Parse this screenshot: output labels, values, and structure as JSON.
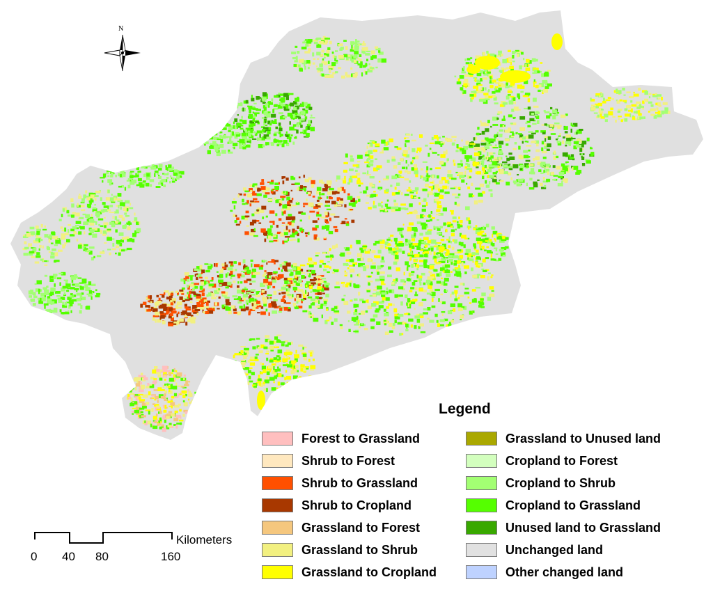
{
  "map": {
    "north_label": "N",
    "region_base_color": "#e0e0e0"
  },
  "legend": {
    "title": "Legend",
    "items": [
      {
        "label": "Forest to Grassland",
        "color": "#ffbfbf"
      },
      {
        "label": "Shrub to Forest",
        "color": "#ffe8bf"
      },
      {
        "label": "Shrub to Grassland",
        "color": "#ff5000"
      },
      {
        "label": "Shrub to Cropland",
        "color": "#a83800"
      },
      {
        "label": "Grassland to Forest",
        "color": "#f5c77e"
      },
      {
        "label": "Grassland to Shrub",
        "color": "#f2f080"
      },
      {
        "label": "Grassland to Cropland",
        "color": "#ffff00"
      },
      {
        "label": "Grassland to Unused land",
        "color": "#aaa800"
      },
      {
        "label": "Cropland to Forest",
        "color": "#d3ffbe"
      },
      {
        "label": "Cropland to Shrub",
        "color": "#a3ff73"
      },
      {
        "label": "Cropland to Grassland",
        "color": "#55ff00"
      },
      {
        "label": "Unused land to Grassland",
        "color": "#38a800"
      },
      {
        "label": "Unchanged land",
        "color": "#e1e1e1"
      },
      {
        "label": "Other changed land",
        "color": "#bed2ff"
      }
    ]
  },
  "scale_bar": {
    "unit": "Kilometers",
    "ticks": [
      "0",
      "40",
      "80",
      "160"
    ]
  }
}
